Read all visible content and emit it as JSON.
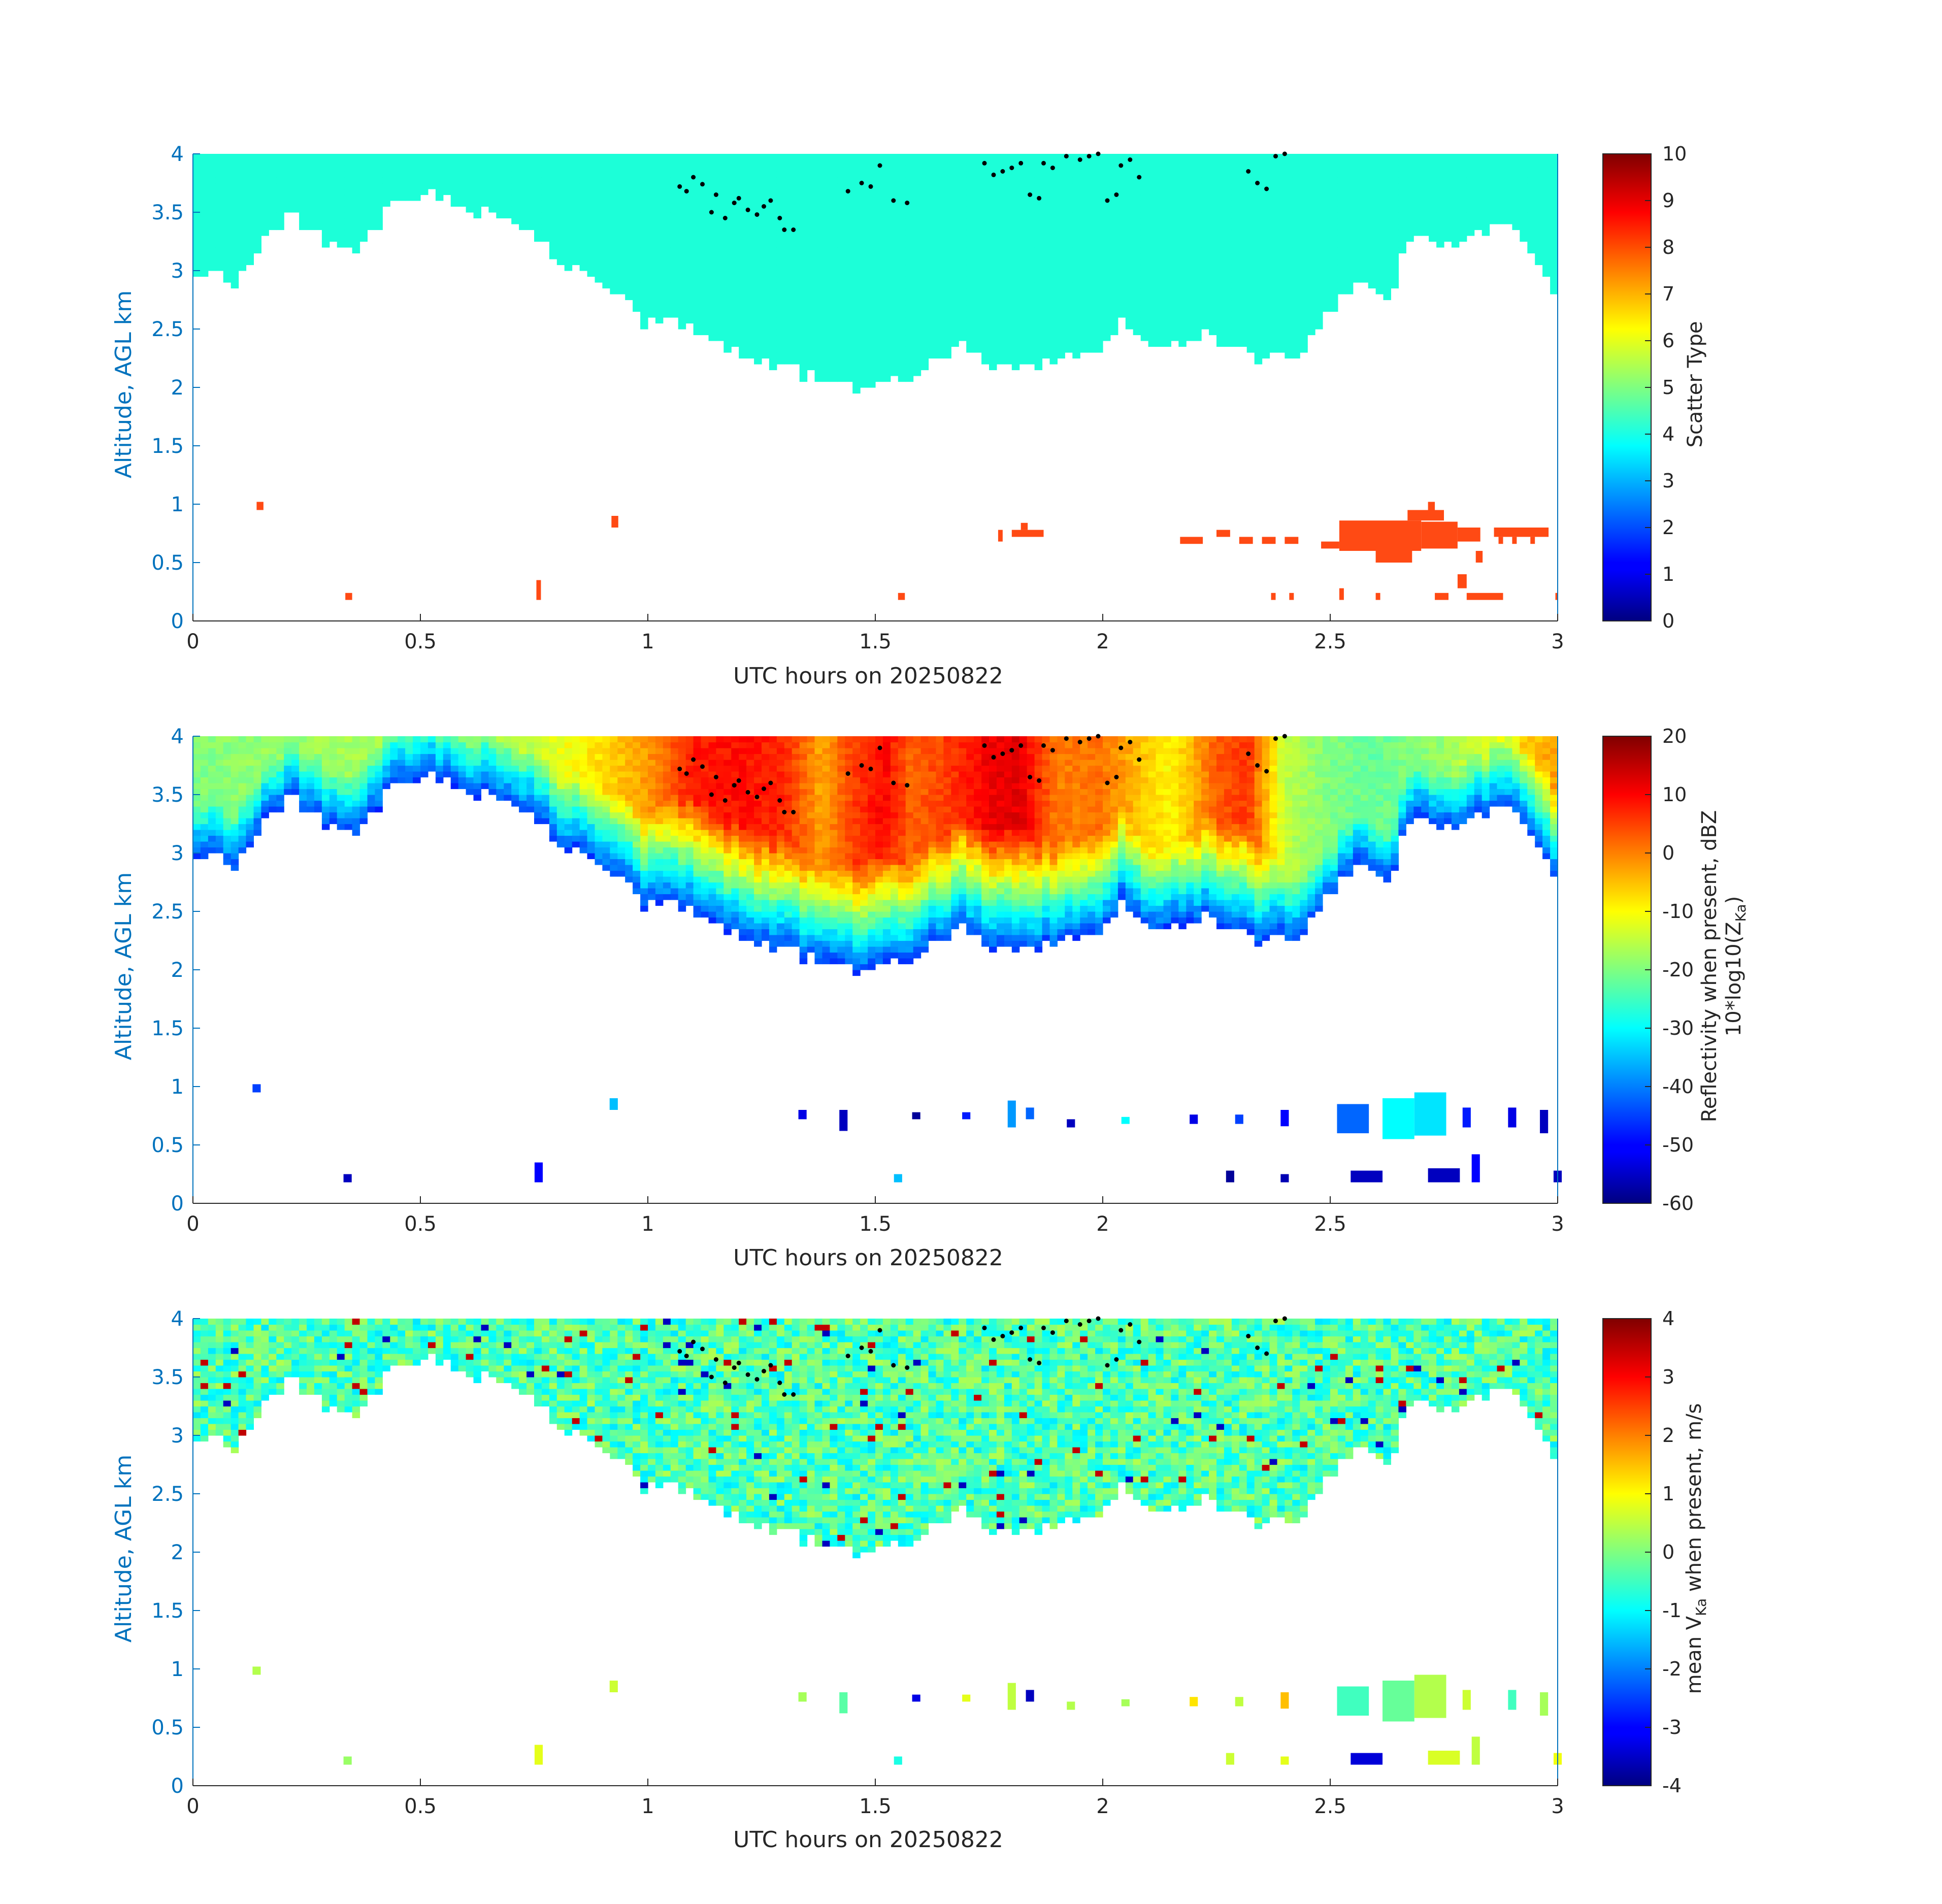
{
  "chart_data": [
    {
      "type": "heatmap",
      "panel": "scatter-type",
      "xlabel": "UTC hours on 20250822",
      "ylabel": "Altitude, AGL km",
      "xlim": [
        0,
        3
      ],
      "ylim": [
        0,
        4
      ],
      "x_ticks": [
        "0",
        "0.5",
        "1",
        "1.5",
        "2",
        "2.5",
        "3"
      ],
      "y_ticks": [
        "0",
        "0.5",
        "1",
        "1.5",
        "2",
        "2.5",
        "3",
        "3.5",
        "4"
      ],
      "colorbar": {
        "label": "Scatter Type",
        "label_sub": "",
        "label_after": "",
        "range": [
          0,
          10
        ],
        "ticks": [
          "0",
          "1",
          "2",
          "3",
          "4",
          "5",
          "6",
          "7",
          "8",
          "9",
          "10"
        ]
      }
    },
    {
      "type": "heatmap",
      "panel": "reflectivity",
      "xlabel": "UTC hours on 20250822",
      "ylabel": "Altitude, AGL km",
      "xlim": [
        0,
        3
      ],
      "ylim": [
        0,
        4
      ],
      "x_ticks": [
        "0",
        "0.5",
        "1",
        "1.5",
        "2",
        "2.5",
        "3"
      ],
      "y_ticks": [
        "0",
        "0.5",
        "1",
        "1.5",
        "2",
        "2.5",
        "3",
        "3.5",
        "4"
      ],
      "colorbar": {
        "label": "Reflectivity when present, dBZ",
        "label2_pre": "10*log10(Z",
        "label2_sub": "Ka",
        "label2_post": ")",
        "range": [
          -60,
          20
        ],
        "ticks": [
          "-60",
          "-50",
          "-40",
          "-30",
          "-20",
          "-10",
          "0",
          "10",
          "20"
        ]
      }
    },
    {
      "type": "heatmap",
      "panel": "velocity",
      "xlabel": "UTC hours on 20250822",
      "ylabel": "Altitude, AGL km",
      "xlim": [
        0,
        3
      ],
      "ylim": [
        0,
        4
      ],
      "x_ticks": [
        "0",
        "0.5",
        "1",
        "1.5",
        "2",
        "2.5",
        "3"
      ],
      "y_ticks": [
        "0",
        "0.5",
        "1",
        "1.5",
        "2",
        "2.5",
        "3",
        "3.5",
        "4"
      ],
      "colorbar": {
        "label_pre": "mean V",
        "label_sub": "Ka",
        "label_post": " when present, m/s",
        "range": [
          -4,
          4
        ],
        "ticks": [
          "-4",
          "-3",
          "-2",
          "-1",
          "0",
          "1",
          "2",
          "3",
          "4"
        ]
      }
    }
  ],
  "cloud_base_km": [
    [
      0,
      2.95
    ],
    [
      0.05,
      3.0
    ],
    [
      0.1,
      2.9
    ],
    [
      0.16,
      3.3
    ],
    [
      0.22,
      3.45
    ],
    [
      0.3,
      3.25
    ],
    [
      0.35,
      3.1
    ],
    [
      0.4,
      3.35
    ],
    [
      0.45,
      3.6
    ],
    [
      0.52,
      3.65
    ],
    [
      0.58,
      3.55
    ],
    [
      0.65,
      3.5
    ],
    [
      0.72,
      3.4
    ],
    [
      0.8,
      3.1
    ],
    [
      0.87,
      2.95
    ],
    [
      0.93,
      2.8
    ],
    [
      1.0,
      2.55
    ],
    [
      1.05,
      2.55
    ],
    [
      1.12,
      2.5
    ],
    [
      1.2,
      2.3
    ],
    [
      1.28,
      2.18
    ],
    [
      1.35,
      2.1
    ],
    [
      1.42,
      2.08
    ],
    [
      1.47,
      1.95
    ],
    [
      1.52,
      2.1
    ],
    [
      1.57,
      2.0
    ],
    [
      1.62,
      2.2
    ],
    [
      1.7,
      2.35
    ],
    [
      1.75,
      2.15
    ],
    [
      1.8,
      2.2
    ],
    [
      1.88,
      2.2
    ],
    [
      1.95,
      2.25
    ],
    [
      2.0,
      2.35
    ],
    [
      2.05,
      2.6
    ],
    [
      2.1,
      2.3
    ],
    [
      2.15,
      2.4
    ],
    [
      2.2,
      2.45
    ],
    [
      2.27,
      2.4
    ],
    [
      2.35,
      2.25
    ],
    [
      2.42,
      2.3
    ],
    [
      2.48,
      2.5
    ],
    [
      2.52,
      2.75
    ],
    [
      2.56,
      2.9
    ],
    [
      2.62,
      2.7
    ],
    [
      2.68,
      3.3
    ],
    [
      2.75,
      3.2
    ],
    [
      2.82,
      3.3
    ],
    [
      2.88,
      3.35
    ],
    [
      2.94,
      3.2
    ],
    [
      2.98,
      2.9
    ],
    [
      3.0,
      2.65
    ]
  ],
  "reflectivity_max_dbz": [
    [
      0,
      -20
    ],
    [
      0.2,
      -18
    ],
    [
      0.4,
      -17
    ],
    [
      0.6,
      -18
    ],
    [
      0.8,
      -12
    ],
    [
      0.95,
      -5
    ],
    [
      1.0,
      -2
    ],
    [
      1.1,
      8
    ],
    [
      1.2,
      9
    ],
    [
      1.3,
      7
    ],
    [
      1.38,
      -3
    ],
    [
      1.45,
      5
    ],
    [
      1.52,
      10
    ],
    [
      1.58,
      2
    ],
    [
      1.65,
      5
    ],
    [
      1.75,
      11
    ],
    [
      1.82,
      12
    ],
    [
      1.9,
      0
    ],
    [
      2.0,
      1
    ],
    [
      2.08,
      -5
    ],
    [
      2.15,
      -10
    ],
    [
      2.25,
      3
    ],
    [
      2.32,
      6
    ],
    [
      2.4,
      -15
    ],
    [
      2.5,
      -20
    ],
    [
      2.6,
      -22
    ],
    [
      2.75,
      -18
    ],
    [
      2.9,
      -8
    ],
    [
      3.0,
      -2
    ]
  ],
  "low_echoes": [
    {
      "x": 0.14,
      "yb": 0.95,
      "yt": 1.02,
      "dbz": -45,
      "vel": 0.4
    },
    {
      "x": 0.34,
      "yb": 0.18,
      "yt": 0.25,
      "dbz": -55,
      "vel": 0.2
    },
    {
      "x": 0.76,
      "yb": 0.18,
      "yt": 0.35,
      "dbz": -50,
      "vel": 0.8
    },
    {
      "x": 0.925,
      "yb": 0.8,
      "yt": 0.9,
      "dbz": -35,
      "vel": 0.6
    },
    {
      "x": 1.34,
      "yb": 0.72,
      "yt": 0.8,
      "dbz": -52,
      "vel": 0.3
    },
    {
      "x": 1.43,
      "yb": 0.62,
      "yt": 0.8,
      "dbz": -55,
      "vel": -0.3
    },
    {
      "x": 1.55,
      "yb": 0.18,
      "yt": 0.25,
      "dbz": -35,
      "vel": -0.8
    },
    {
      "x": 1.59,
      "yb": 0.72,
      "yt": 0.78,
      "dbz": -58,
      "vel": -3.2
    },
    {
      "x": 1.7,
      "yb": 0.72,
      "yt": 0.78,
      "dbz": -48,
      "vel": 0.8
    },
    {
      "x": 1.8,
      "yb": 0.65,
      "yt": 0.88,
      "dbz": -38,
      "vel": 0.5
    },
    {
      "x": 1.84,
      "yb": 0.72,
      "yt": 0.82,
      "dbz": -42,
      "vel": -3.5
    },
    {
      "x": 1.93,
      "yb": 0.65,
      "yt": 0.72,
      "dbz": -55,
      "vel": 0.4
    },
    {
      "x": 2.05,
      "yb": 0.68,
      "yt": 0.74,
      "dbz": -30,
      "vel": 0.3
    },
    {
      "x": 2.2,
      "yb": 0.68,
      "yt": 0.76,
      "dbz": -52,
      "vel": 1.2
    },
    {
      "x": 2.3,
      "yb": 0.68,
      "yt": 0.76,
      "dbz": -45,
      "vel": 0.5
    },
    {
      "x": 2.4,
      "yb": 0.66,
      "yt": 0.8,
      "dbz": -50,
      "vel": 1.5
    },
    {
      "x": 2.55,
      "yb": 0.6,
      "yt": 0.85,
      "dbz": -42,
      "vel": -0.5
    },
    {
      "x": 2.65,
      "yb": 0.55,
      "yt": 0.9,
      "dbz": -30,
      "vel": -0.2
    },
    {
      "x": 2.72,
      "yb": 0.58,
      "yt": 0.95,
      "dbz": -32,
      "vel": 0.4
    },
    {
      "x": 2.8,
      "yb": 0.65,
      "yt": 0.82,
      "dbz": -48,
      "vel": 0.6
    },
    {
      "x": 2.9,
      "yb": 0.65,
      "yt": 0.82,
      "dbz": -52,
      "vel": -0.5
    },
    {
      "x": 2.97,
      "yb": 0.6,
      "yt": 0.8,
      "dbz": -55,
      "vel": 0.3
    },
    {
      "x": 2.28,
      "yb": 0.18,
      "yt": 0.28,
      "dbz": -58,
      "vel": 0.6
    },
    {
      "x": 2.4,
      "yb": 0.18,
      "yt": 0.25,
      "dbz": -56,
      "vel": 0.8
    },
    {
      "x": 2.58,
      "yb": 0.18,
      "yt": 0.28,
      "dbz": -55,
      "vel": -3.3
    },
    {
      "x": 2.75,
      "yb": 0.18,
      "yt": 0.3,
      "dbz": -55,
      "vel": 0.7
    },
    {
      "x": 2.82,
      "yb": 0.18,
      "yt": 0.42,
      "dbz": -50,
      "vel": 0.5
    },
    {
      "x": 3.0,
      "yb": 0.18,
      "yt": 0.28,
      "dbz": -55,
      "vel": 0.9
    }
  ],
  "scatter_low": [
    {
      "x0": 0.14,
      "x1": 0.155,
      "yb": 0.95,
      "yt": 1.02
    },
    {
      "x0": 0.335,
      "x1": 0.35,
      "yb": 0.18,
      "yt": 0.24
    },
    {
      "x0": 0.755,
      "x1": 0.765,
      "yb": 0.18,
      "yt": 0.35
    },
    {
      "x0": 0.92,
      "x1": 0.935,
      "yb": 0.8,
      "yt": 0.9
    },
    {
      "x0": 1.55,
      "x1": 1.565,
      "yb": 0.18,
      "yt": 0.24
    },
    {
      "x0": 1.77,
      "x1": 1.78,
      "yb": 0.68,
      "yt": 0.78
    },
    {
      "x0": 1.8,
      "x1": 1.87,
      "yb": 0.72,
      "yt": 0.78
    },
    {
      "x0": 1.82,
      "x1": 1.835,
      "yb": 0.78,
      "yt": 0.84
    },
    {
      "x0": 2.17,
      "x1": 2.22,
      "yb": 0.66,
      "yt": 0.72
    },
    {
      "x0": 2.25,
      "x1": 2.28,
      "yb": 0.72,
      "yt": 0.78
    },
    {
      "x0": 2.3,
      "x1": 2.33,
      "yb": 0.66,
      "yt": 0.72
    },
    {
      "x0": 2.35,
      "x1": 2.38,
      "yb": 0.66,
      "yt": 0.72
    },
    {
      "x0": 2.4,
      "x1": 2.43,
      "yb": 0.66,
      "yt": 0.72
    },
    {
      "x0": 2.48,
      "x1": 2.52,
      "yb": 0.62,
      "yt": 0.68
    },
    {
      "x0": 2.52,
      "x1": 2.7,
      "yb": 0.6,
      "yt": 0.86
    },
    {
      "x0": 2.6,
      "x1": 2.68,
      "yb": 0.5,
      "yt": 0.6
    },
    {
      "x0": 2.67,
      "x1": 2.75,
      "yb": 0.86,
      "yt": 0.95
    },
    {
      "x0": 2.7,
      "x1": 2.78,
      "yb": 0.62,
      "yt": 0.85
    },
    {
      "x0": 2.715,
      "x1": 2.73,
      "yb": 0.95,
      "yt": 1.02
    },
    {
      "x0": 2.78,
      "x1": 2.83,
      "yb": 0.68,
      "yt": 0.8
    },
    {
      "x0": 2.82,
      "x1": 2.835,
      "yb": 0.5,
      "yt": 0.6
    },
    {
      "x0": 2.86,
      "x1": 2.98,
      "yb": 0.72,
      "yt": 0.8
    },
    {
      "x0": 2.87,
      "x1": 2.88,
      "yb": 0.66,
      "yt": 0.72
    },
    {
      "x0": 2.9,
      "x1": 2.91,
      "yb": 0.66,
      "yt": 0.72
    },
    {
      "x0": 2.94,
      "x1": 2.95,
      "yb": 0.66,
      "yt": 0.72
    },
    {
      "x0": 2.37,
      "x1": 2.38,
      "yb": 0.18,
      "yt": 0.24
    },
    {
      "x0": 2.41,
      "x1": 2.42,
      "yb": 0.18,
      "yt": 0.24
    },
    {
      "x0": 2.52,
      "x1": 2.53,
      "yb": 0.18,
      "yt": 0.28
    },
    {
      "x0": 2.6,
      "x1": 2.61,
      "yb": 0.18,
      "yt": 0.24
    },
    {
      "x0": 2.73,
      "x1": 2.76,
      "yb": 0.18,
      "yt": 0.24
    },
    {
      "x0": 2.78,
      "x1": 2.8,
      "yb": 0.28,
      "yt": 0.4
    },
    {
      "x0": 2.8,
      "x1": 2.88,
      "yb": 0.18,
      "yt": 0.24
    },
    {
      "x0": 2.995,
      "x1": 3.0,
      "yb": 0.18,
      "yt": 0.24
    }
  ],
  "lidar_dots": [
    [
      1.07,
      3.72
    ],
    [
      1.085,
      3.68
    ],
    [
      1.1,
      3.8
    ],
    [
      1.12,
      3.74
    ],
    [
      1.14,
      3.5
    ],
    [
      1.15,
      3.65
    ],
    [
      1.17,
      3.45
    ],
    [
      1.19,
      3.58
    ],
    [
      1.2,
      3.62
    ],
    [
      1.22,
      3.52
    ],
    [
      1.24,
      3.48
    ],
    [
      1.255,
      3.55
    ],
    [
      1.27,
      3.6
    ],
    [
      1.29,
      3.45
    ],
    [
      1.3,
      3.35
    ],
    [
      1.32,
      3.35
    ],
    [
      1.44,
      3.68
    ],
    [
      1.47,
      3.75
    ],
    [
      1.49,
      3.72
    ],
    [
      1.51,
      3.9
    ],
    [
      1.54,
      3.6
    ],
    [
      1.57,
      3.58
    ],
    [
      1.74,
      3.92
    ],
    [
      1.76,
      3.82
    ],
    [
      1.78,
      3.85
    ],
    [
      1.8,
      3.88
    ],
    [
      1.82,
      3.92
    ],
    [
      1.84,
      3.65
    ],
    [
      1.86,
      3.62
    ],
    [
      1.87,
      3.92
    ],
    [
      1.89,
      3.88
    ],
    [
      1.92,
      3.98
    ],
    [
      1.95,
      3.95
    ],
    [
      1.97,
      3.98
    ],
    [
      1.99,
      4.0
    ],
    [
      2.01,
      3.6
    ],
    [
      2.03,
      3.65
    ],
    [
      2.04,
      3.9
    ],
    [
      2.06,
      3.95
    ],
    [
      2.08,
      3.8
    ],
    [
      2.32,
      3.85
    ],
    [
      2.34,
      3.75
    ],
    [
      2.36,
      3.7
    ],
    [
      2.38,
      3.98
    ],
    [
      2.4,
      4.0
    ]
  ]
}
